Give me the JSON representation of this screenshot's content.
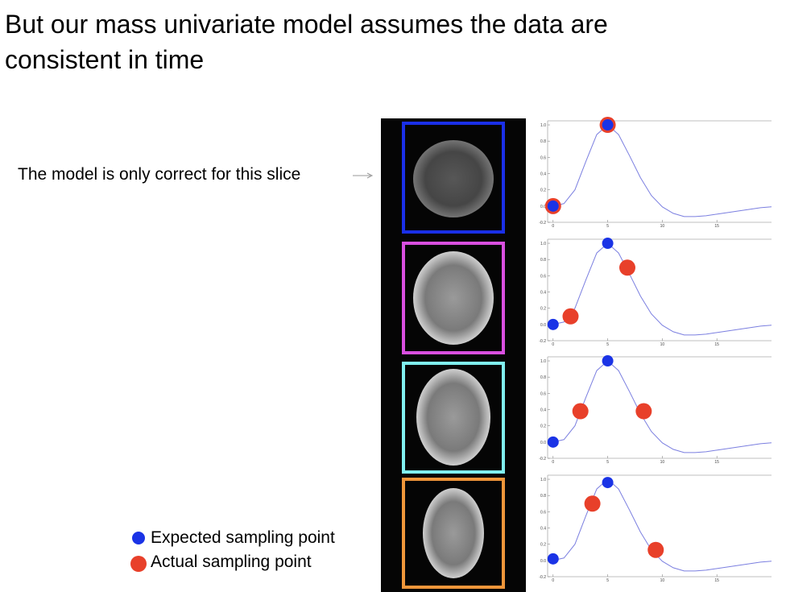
{
  "title": "But our mass univariate model assumes the data are consistent in time",
  "annotation": "The model is only correct for this slice",
  "legend": {
    "expected": {
      "label": "Expected sampling point",
      "color": "#1a33e6"
    },
    "actual": {
      "label": "Actual sampling point",
      "color": "#e8402a"
    }
  },
  "chart_data": [
    {
      "type": "line",
      "color": "#7b7fe0",
      "x": [
        0,
        1,
        2,
        3,
        4,
        5,
        6,
        7,
        8,
        9,
        10,
        11,
        12,
        13,
        14,
        15,
        16,
        17,
        18,
        19,
        20
      ],
      "y": [
        0,
        0.03,
        0.2,
        0.55,
        0.88,
        1.0,
        0.88,
        0.62,
        0.35,
        0.13,
        -0.01,
        -0.09,
        -0.13,
        -0.13,
        -0.12,
        -0.1,
        -0.08,
        -0.06,
        -0.04,
        -0.02,
        -0.01
      ],
      "expected": {
        "x": [
          0,
          5
        ],
        "y": [
          0,
          1.0
        ]
      },
      "actual": {
        "x": [
          0,
          5
        ],
        "y": [
          0,
          1.0
        ]
      },
      "xlim": [
        -0.5,
        20
      ],
      "ylim": [
        -0.2,
        1.05
      ],
      "xticks": [
        0,
        5,
        10,
        15
      ],
      "yticks": [
        -0.2,
        {
          "value": 0,
          "label": "0.0"
        },
        0.2,
        0.4,
        0.6,
        0.8,
        {
          "value": 1,
          "label": "1.0"
        }
      ]
    },
    {
      "type": "line",
      "color": "#7b7fe0",
      "x": [
        0,
        1,
        2,
        3,
        4,
        5,
        6,
        7,
        8,
        9,
        10,
        11,
        12,
        13,
        14,
        15,
        16,
        17,
        18,
        19,
        20
      ],
      "y": [
        0,
        0.03,
        0.2,
        0.55,
        0.88,
        1.0,
        0.88,
        0.62,
        0.35,
        0.13,
        -0.01,
        -0.09,
        -0.13,
        -0.13,
        -0.12,
        -0.1,
        -0.08,
        -0.06,
        -0.04,
        -0.02,
        -0.01
      ],
      "expected": {
        "x": [
          0,
          5
        ],
        "y": [
          0,
          1.0
        ]
      },
      "actual": {
        "x": [
          1.6,
          6.8
        ],
        "y": [
          0.1,
          0.7
        ]
      },
      "xlim": [
        -0.5,
        20
      ],
      "ylim": [
        -0.2,
        1.05
      ],
      "xticks": [
        0,
        5,
        10,
        15
      ],
      "yticks": [
        -0.2,
        {
          "value": 0,
          "label": "0.0"
        },
        0.2,
        0.4,
        0.6,
        0.8,
        {
          "value": 1,
          "label": "1.0"
        }
      ]
    },
    {
      "type": "line",
      "color": "#7b7fe0",
      "x": [
        0,
        1,
        2,
        3,
        4,
        5,
        6,
        7,
        8,
        9,
        10,
        11,
        12,
        13,
        14,
        15,
        16,
        17,
        18,
        19,
        20
      ],
      "y": [
        0,
        0.03,
        0.2,
        0.55,
        0.88,
        1.0,
        0.88,
        0.62,
        0.35,
        0.13,
        -0.01,
        -0.09,
        -0.13,
        -0.13,
        -0.12,
        -0.1,
        -0.08,
        -0.06,
        -0.04,
        -0.02,
        -0.01
      ],
      "expected": {
        "x": [
          0,
          5
        ],
        "y": [
          0,
          1.0
        ]
      },
      "actual": {
        "x": [
          2.5,
          8.3
        ],
        "y": [
          0.38,
          0.38
        ]
      },
      "xlim": [
        -0.5,
        20
      ],
      "ylim": [
        -0.2,
        1.05
      ],
      "xticks": [
        0,
        5,
        10,
        15
      ],
      "yticks": [
        -0.2,
        {
          "value": 0,
          "label": "0.0"
        },
        0.2,
        0.4,
        0.6,
        0.8,
        {
          "value": 1,
          "label": "1.0"
        }
      ]
    },
    {
      "type": "line",
      "color": "#7b7fe0",
      "x": [
        0,
        1,
        2,
        3,
        4,
        5,
        6,
        7,
        8,
        9,
        10,
        11,
        12,
        13,
        14,
        15,
        16,
        17,
        18,
        19,
        20
      ],
      "y": [
        0,
        0.03,
        0.2,
        0.55,
        0.88,
        1.0,
        0.88,
        0.62,
        0.35,
        0.13,
        -0.01,
        -0.09,
        -0.13,
        -0.13,
        -0.12,
        -0.1,
        -0.08,
        -0.06,
        -0.04,
        -0.02,
        -0.01
      ],
      "expected": {
        "x": [
          0,
          5
        ],
        "y": [
          0.02,
          0.96
        ]
      },
      "actual": {
        "x": [
          3.6,
          9.4
        ],
        "y": [
          0.7,
          0.13
        ]
      },
      "xlim": [
        -0.5,
        20
      ],
      "ylim": [
        -0.2,
        1.05
      ],
      "xticks": [
        0,
        5,
        10,
        15
      ],
      "yticks": [
        -0.2,
        {
          "value": 0,
          "label": "0.0"
        },
        0.2,
        0.4,
        0.6,
        0.8,
        {
          "value": 1,
          "label": "1.0"
        }
      ]
    }
  ]
}
